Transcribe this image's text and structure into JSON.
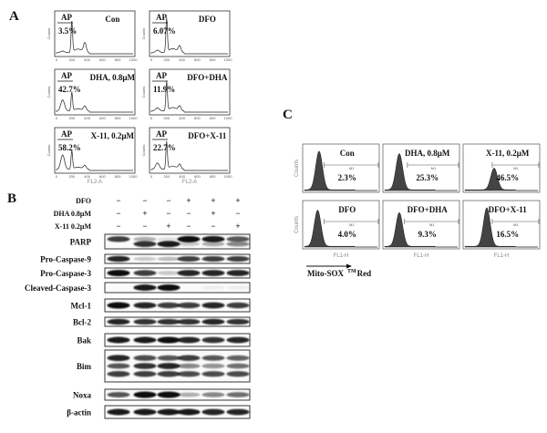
{
  "panelA": {
    "letter": "A",
    "gate_label": "AP",
    "xticks": [
      "0",
      "200",
      "400",
      "600",
      "800",
      "1000"
    ],
    "ylabel": "Counts",
    "xlabel": "FL2-A",
    "plots": [
      {
        "title": "Con",
        "percent": "3.5%"
      },
      {
        "title": "DFO",
        "percent": "6.07%"
      },
      {
        "title": "DHA,  0.8μM",
        "percent": "42.7%"
      },
      {
        "title": "DFO+DHA",
        "percent": "11.9%"
      },
      {
        "title": "X-11, 0.2μM",
        "percent": "58.2%"
      },
      {
        "title": "DFO+X-11",
        "percent": "22.7%"
      }
    ]
  },
  "panelB": {
    "letter": "B",
    "conditions": [
      {
        "label": "DFO",
        "signs": [
          "−",
          "−",
          "−",
          "+",
          "+",
          "+"
        ]
      },
      {
        "label": "DHA  0.8μM",
        "signs": [
          "−",
          "+",
          "−",
          "−",
          "+",
          "−"
        ]
      },
      {
        "label": "X-11  0.2μM",
        "signs": [
          "−",
          "−",
          "+",
          "−",
          "−",
          "+"
        ]
      }
    ],
    "blots": [
      {
        "label": "PARP",
        "bands": [
          [
            0.8,
            0.3,
            0.1,
            1,
            0.95,
            0.7
          ],
          [
            0,
            0.85,
            0.95,
            0.2,
            0.35,
            0.5
          ]
        ]
      },
      {
        "label": "Pro-Caspase-9",
        "bands": [
          [
            0.9,
            0.2,
            0.25,
            0.8,
            0.8,
            0.8
          ]
        ]
      },
      {
        "label": "Pro-Caspase-3",
        "bands": [
          [
            1,
            0.8,
            0.2,
            0.9,
            0.9,
            0.9
          ]
        ]
      },
      {
        "label": "Cleaved-Caspase-3",
        "bands": [
          [
            0,
            0.95,
            1,
            0,
            0.05,
            0.05
          ]
        ]
      },
      {
        "label": "Mcl-1",
        "bands": [
          [
            1,
            0.9,
            0.8,
            0.8,
            0.9,
            0.8
          ]
        ]
      },
      {
        "label": "Bcl-2",
        "bands": [
          [
            0.9,
            0.85,
            0.85,
            0.85,
            0.9,
            0.85
          ]
        ]
      },
      {
        "label": "Bak",
        "bands": [
          [
            0.95,
            0.95,
            1,
            0.9,
            0.85,
            0.9
          ]
        ]
      },
      {
        "label": "Bim",
        "bands": [
          [
            0.9,
            0.75,
            0.7,
            0.8,
            0.7,
            0.65
          ],
          [
            0.7,
            0.85,
            0.9,
            0.5,
            0.45,
            0.6
          ],
          [
            0.8,
            0.8,
            0.8,
            0.75,
            0.75,
            0.75
          ]
        ]
      },
      {
        "label": "Noxa",
        "bands": [
          [
            0.7,
            1,
            1,
            0.3,
            0.5,
            0.6
          ]
        ]
      },
      {
        "label": "β-actin",
        "bands": [
          [
            0.95,
            0.95,
            0.95,
            0.95,
            0.9,
            0.9
          ]
        ]
      }
    ]
  },
  "panelC": {
    "letter": "C",
    "ylabel": "Counts",
    "xlabel": "FL1-H",
    "gate_label": "M1",
    "axis_title": "Mito-SOX",
    "axis_title_sup": "TM",
    "axis_title_end": "Red",
    "plots": [
      {
        "title": "Con",
        "percent": "2.3%"
      },
      {
        "title": "DHA,  0.8μM",
        "percent": "25.3%"
      },
      {
        "title": "X-11,  0.2μM",
        "percent": "46.5%"
      },
      {
        "title": "DFO",
        "percent": "4.0%"
      },
      {
        "title": "DFO+DHA",
        "percent": "9.3%"
      },
      {
        "title": "DFO+X-11",
        "percent": "16.5%"
      }
    ]
  }
}
